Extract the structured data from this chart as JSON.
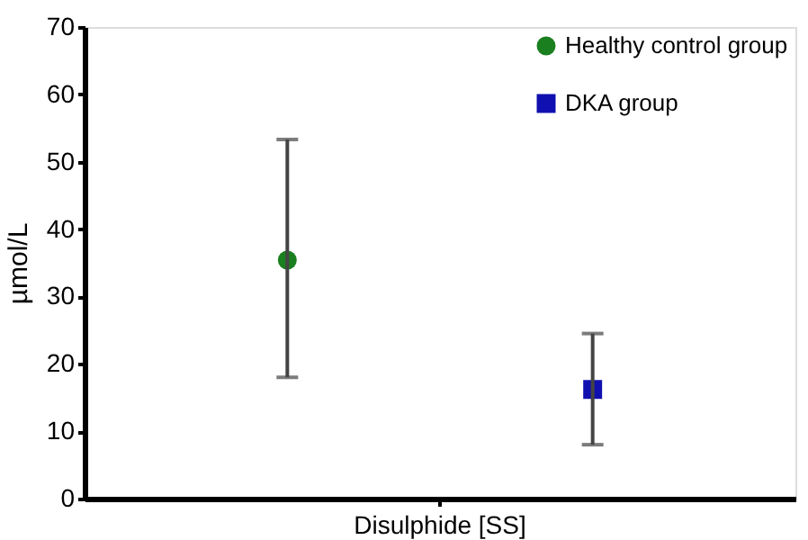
{
  "chart_data": {
    "type": "scatter",
    "categories": [
      "Disulphide [SS]"
    ],
    "ylabel": "µmol/L",
    "ylim": [
      0,
      70
    ],
    "yticks": [
      0,
      10,
      20,
      30,
      40,
      50,
      60,
      70
    ],
    "grid": false,
    "legend": "top right",
    "series": [
      {
        "name": "Healthy control group",
        "color": "#1a7f1f",
        "marker": "circle",
        "values": [
          35.4
        ],
        "errors": [
          [
            18.0,
            53.3
          ]
        ]
      },
      {
        "name": "DKA group",
        "color": "#1010b0",
        "marker": "square",
        "values": [
          16.2
        ],
        "errors": [
          [
            8.0,
            24.5
          ]
        ]
      }
    ]
  }
}
